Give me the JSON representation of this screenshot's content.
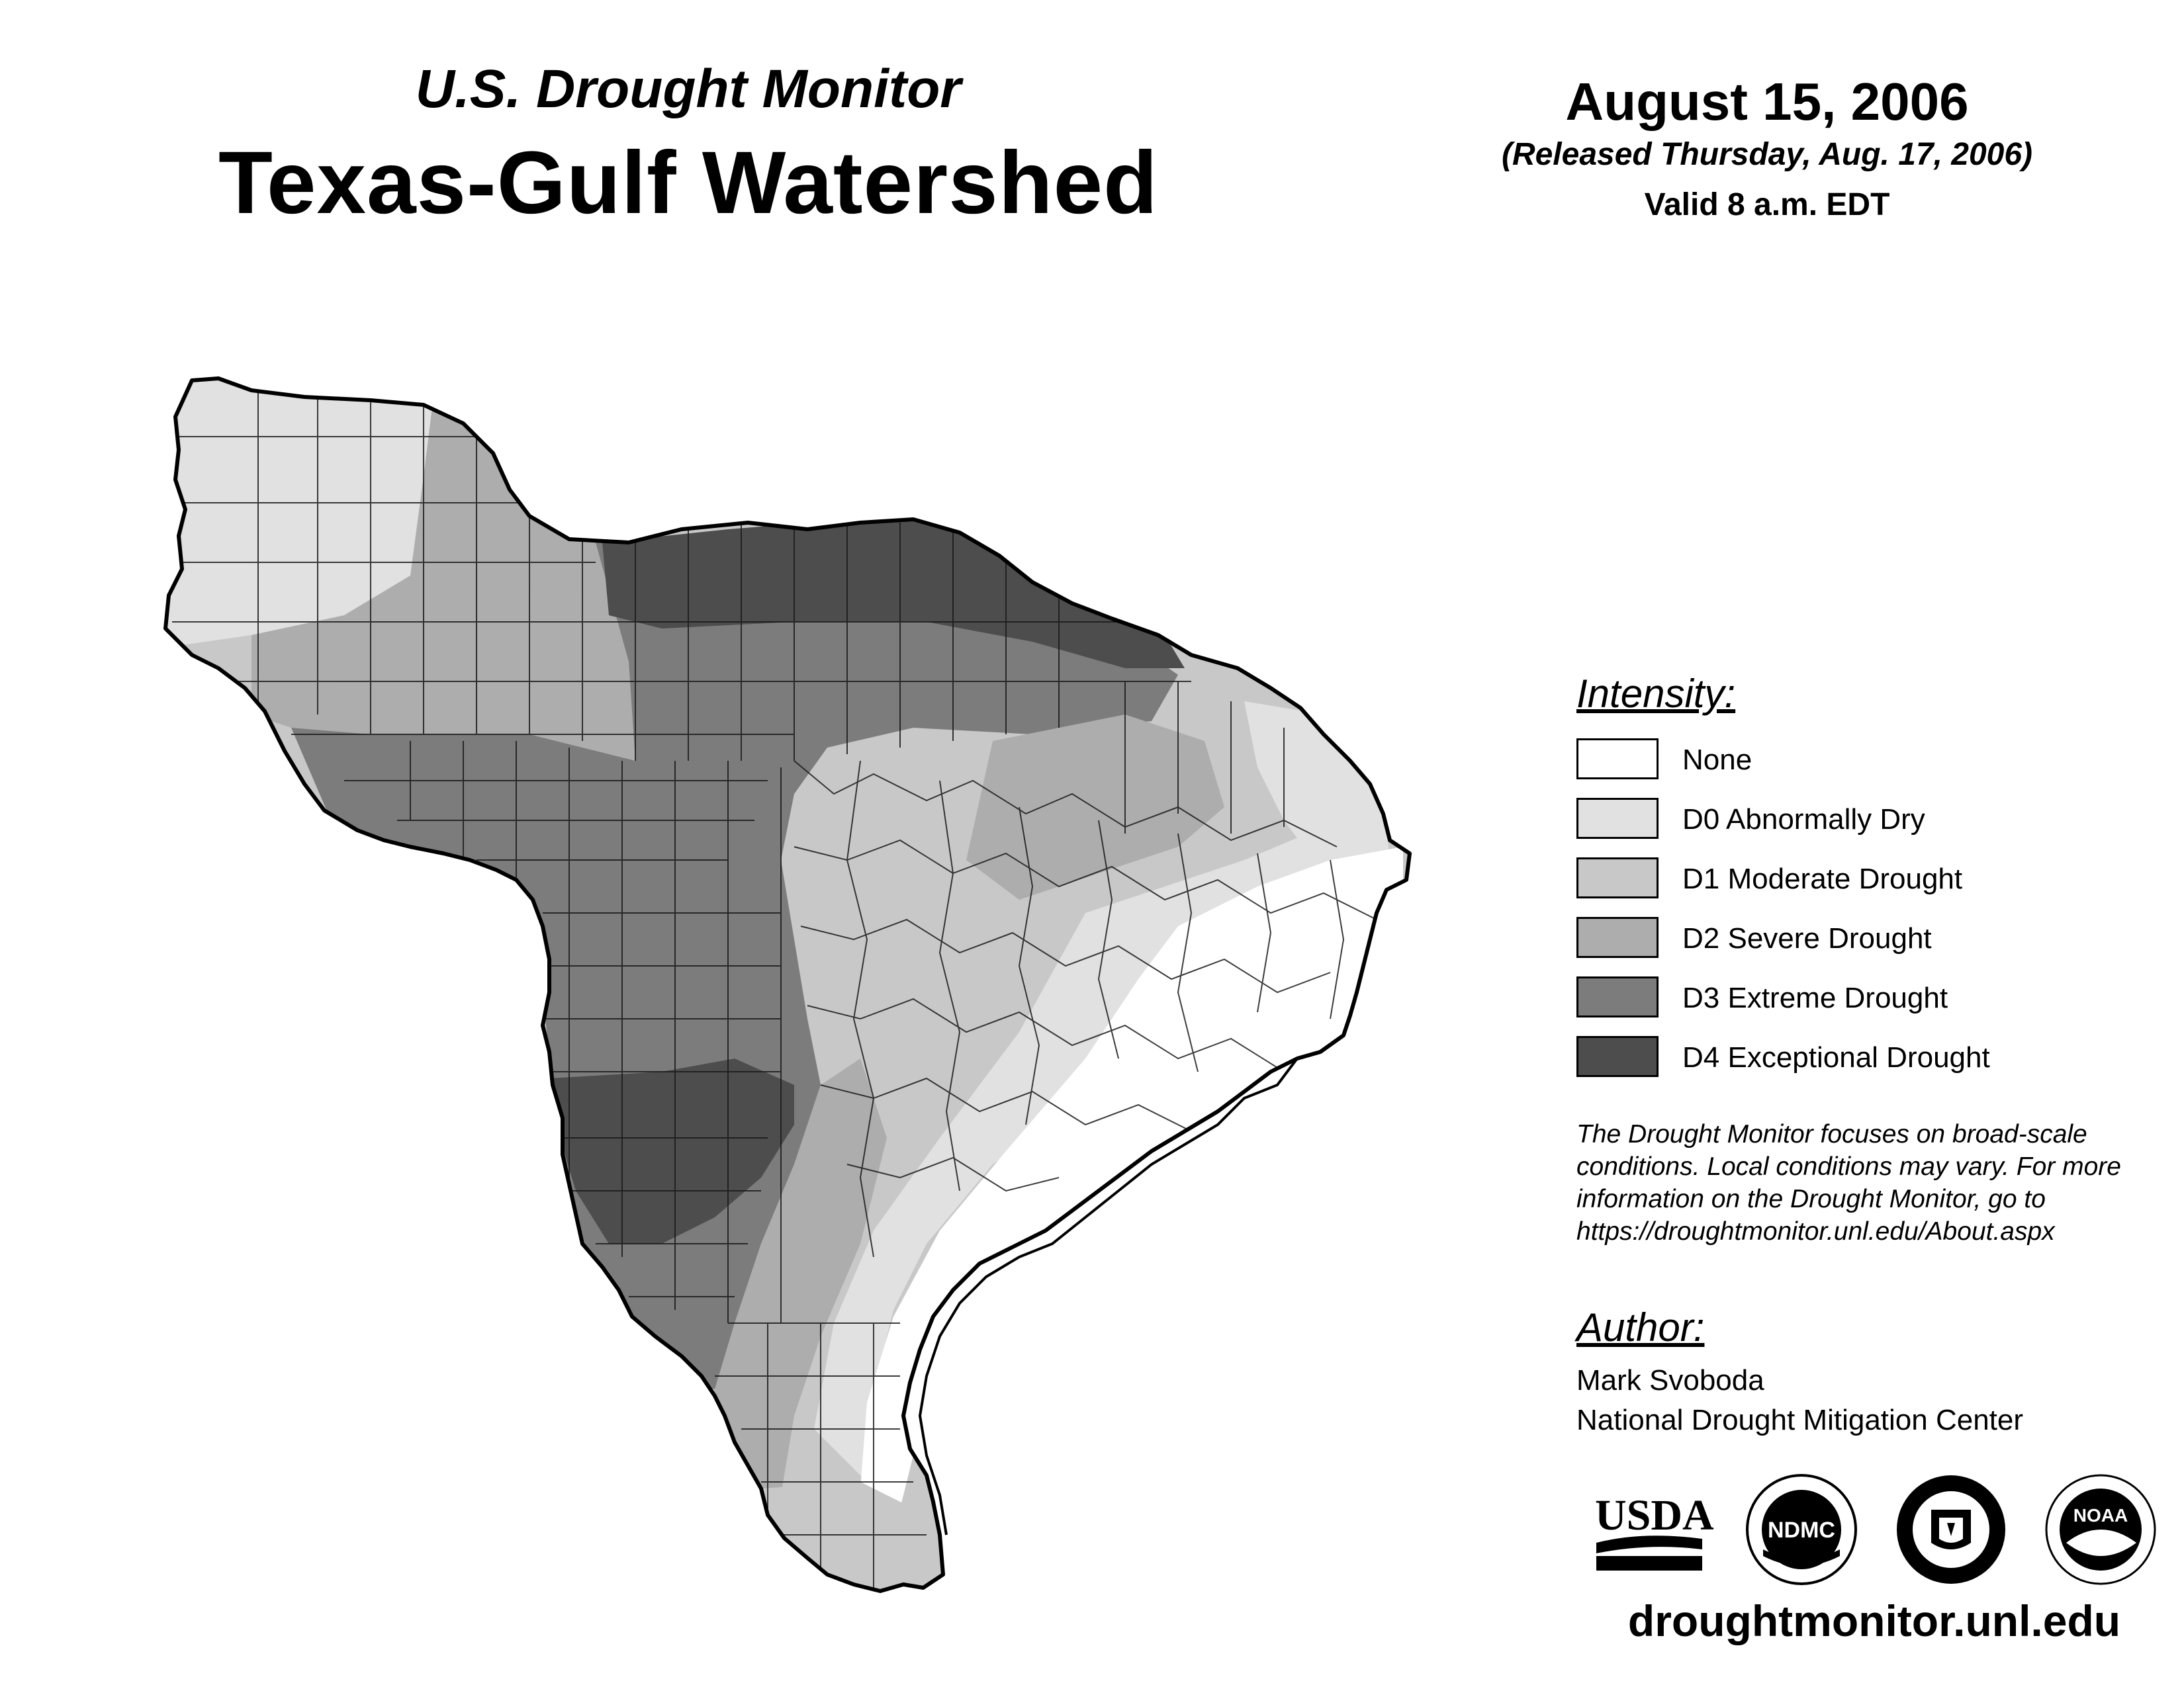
{
  "header": {
    "subtitle": "U.S. Drought Monitor",
    "title": "Texas-Gulf Watershed",
    "date": "August 15, 2006",
    "released": "(Released Thursday, Aug. 17, 2006)",
    "valid": "Valid 8 a.m. EDT"
  },
  "legend": {
    "title": "Intensity:",
    "items": [
      {
        "label": "None",
        "color": "#ffffff"
      },
      {
        "label": "D0 Abnormally Dry",
        "color": "#e1e1e1"
      },
      {
        "label": "D1 Moderate Drought",
        "color": "#c8c8c8"
      },
      {
        "label": "D2 Severe Drought",
        "color": "#adadad"
      },
      {
        "label": "D3 Extreme Drought",
        "color": "#7c7c7c"
      },
      {
        "label": "D4 Exceptional Drought",
        "color": "#4d4d4d"
      }
    ]
  },
  "note": {
    "lines": [
      "The Drought Monitor focuses on broad-scale",
      "conditions. Local conditions may vary. For more",
      "information on the Drought Monitor, go to",
      "https://droughtmonitor.unl.edu/About.aspx"
    ]
  },
  "author": {
    "title": "Author:",
    "name": "Mark Svoboda",
    "org": "National Drought Mitigation Center"
  },
  "logos": {
    "usda": "USDA",
    "ndmc": "NDMC",
    "noaa": "NOAA"
  },
  "footer": {
    "url": "droughtmonitor.unl.edu"
  }
}
